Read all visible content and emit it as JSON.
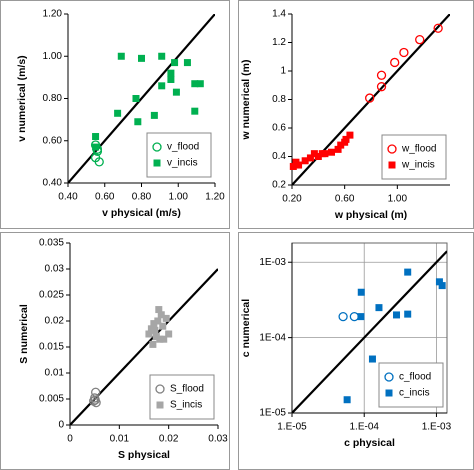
{
  "chart_data": [
    {
      "type": "scatter",
      "xlabel": "v physical (m/s)",
      "ylabel": "v numerical (m/s)",
      "xlim": [
        0.4,
        1.2
      ],
      "ylim": [
        0.4,
        1.2
      ],
      "xticks": [
        {
          "value": 0.4,
          "label": "0.40"
        },
        {
          "value": 0.6,
          "label": "0.60"
        },
        {
          "value": 0.8,
          "label": "0.80"
        },
        {
          "value": 1.0,
          "label": "1.00"
        },
        {
          "value": 1.2,
          "label": "1.20"
        }
      ],
      "yticks": [
        {
          "value": 0.4,
          "label": "0.40"
        },
        {
          "value": 0.6,
          "label": "0.60"
        },
        {
          "value": 0.8,
          "label": "0.80"
        },
        {
          "value": 1.0,
          "label": "1.00"
        },
        {
          "value": 1.2,
          "label": "1.20"
        }
      ],
      "log": false,
      "grid": false,
      "diagonal": true,
      "legend": "lower right",
      "series": [
        {
          "name": "v_flood",
          "color": "#00b050",
          "marker": "open-circle",
          "x": [
            0.55,
            0.56,
            0.55,
            0.57,
            0.56
          ],
          "values": [
            0.58,
            0.55,
            0.52,
            0.5,
            0.56
          ]
        },
        {
          "name": "v_incis",
          "color": "#00b050",
          "marker": "square",
          "x": [
            0.69,
            0.8,
            0.91,
            0.98,
            1.05,
            0.96,
            0.96,
            1.12,
            1.09,
            0.91,
            0.99,
            0.77,
            0.67,
            0.87,
            0.78,
            1.09,
            0.55,
            0.55
          ],
          "values": [
            1.0,
            0.99,
            1.0,
            0.97,
            0.97,
            0.92,
            0.89,
            0.87,
            0.87,
            0.86,
            0.83,
            0.8,
            0.73,
            0.72,
            0.69,
            0.74,
            0.62,
            0.57
          ]
        }
      ]
    },
    {
      "type": "scatter",
      "xlabel": "w physical (m)",
      "ylabel": "w numerical (m)",
      "xlim": [
        0.2,
        1.4
      ],
      "ylim": [
        0.2,
        1.4
      ],
      "xticks": [
        {
          "value": 0.2,
          "label": "0.20"
        },
        {
          "value": 0.6,
          "label": "0.60"
        },
        {
          "value": 1.0,
          "label": "1.00"
        }
      ],
      "yticks": [
        0.2,
        0.4,
        0.6,
        0.8,
        1,
        1.2,
        1.4
      ],
      "log": false,
      "grid": false,
      "diagonal": true,
      "legend": "lower right",
      "series": [
        {
          "name": "w_flood",
          "color": "#ff0000",
          "marker": "open-circle",
          "x": [
            1.31,
            1.17,
            1.05,
            0.98,
            0.88,
            0.88,
            0.79
          ],
          "values": [
            1.3,
            1.22,
            1.13,
            1.06,
            0.97,
            0.89,
            0.81
          ]
        },
        {
          "name": "w_incis",
          "color": "#ff0000",
          "marker": "square",
          "x": [
            0.21,
            0.25,
            0.3,
            0.34,
            0.4,
            0.45,
            0.5,
            0.55,
            0.6,
            0.64,
            0.61,
            0.57,
            0.37,
            0.43,
            0.23
          ],
          "values": [
            0.33,
            0.34,
            0.37,
            0.39,
            0.4,
            0.42,
            0.43,
            0.45,
            0.5,
            0.55,
            0.52,
            0.48,
            0.42,
            0.42,
            0.36
          ]
        }
      ]
    },
    {
      "type": "scatter",
      "xlabel": "S physical",
      "ylabel": "S numerical",
      "xlim": [
        0,
        0.03
      ],
      "ylim": [
        0,
        0.035
      ],
      "xticks": [
        0,
        0.01,
        0.02,
        0.03
      ],
      "yticks": [
        0,
        0.005,
        0.01,
        0.015,
        0.02,
        0.025,
        0.03,
        0.035
      ],
      "log": false,
      "grid": false,
      "diagonal": true,
      "legend": "lower right",
      "series": [
        {
          "name": "S_flood",
          "color": "#808080",
          "marker": "open-circle",
          "x": [
            0.0052,
            0.005,
            0.0048,
            0.0053,
            0.0051
          ],
          "values": [
            0.0063,
            0.0052,
            0.0046,
            0.0043,
            0.0048
          ]
        },
        {
          "name": "S_incis",
          "color": "#a6a6a6",
          "marker": "square",
          "x": [
            0.0165,
            0.018,
            0.0195,
            0.017,
            0.0185,
            0.02,
            0.016,
            0.0175,
            0.019,
            0.0168,
            0.0182,
            0.0172,
            0.0188,
            0.0178
          ],
          "values": [
            0.0185,
            0.0222,
            0.0205,
            0.0195,
            0.0212,
            0.0175,
            0.0175,
            0.017,
            0.0165,
            0.0155,
            0.0165,
            0.0182,
            0.019,
            0.02
          ]
        }
      ]
    },
    {
      "type": "scatter",
      "xlabel": "c physical",
      "ylabel": "c numerical",
      "xlim": [
        1e-05,
        0.0014
      ],
      "ylim": [
        1e-05,
        0.0018
      ],
      "xticks": [
        {
          "value": 1e-05,
          "label": "1.E-05"
        },
        {
          "value": 0.0001,
          "label": "1.E-04"
        },
        {
          "value": 0.001,
          "label": "1.E-03"
        }
      ],
      "yticks": [
        {
          "value": 1e-05,
          "label": "1E-05"
        },
        {
          "value": 0.0001,
          "label": "1E-04"
        },
        {
          "value": 0.001,
          "label": "1E-03"
        }
      ],
      "log": true,
      "grid": true,
      "diagonal": true,
      "legend": "lower right",
      "series": [
        {
          "name": "c_flood",
          "color": "#0070c0",
          "marker": "open-circle",
          "x": [
            5.1e-05,
            7.3e-05
          ],
          "values": [
            0.00019,
            0.00019
          ]
        },
        {
          "name": "c_incis",
          "color": "#0070c0",
          "marker": "square",
          "x": [
            0.0004,
            0.0011,
            0.0012,
            9.1e-05,
            0.00016,
            0.00028,
            0.0004,
            9e-05,
            0.00013,
            5.8e-05
          ],
          "values": [
            0.00074,
            0.00055,
            0.00049,
            0.0004,
            0.00025,
            0.0002,
            0.000205,
            0.00019,
            5.2e-05,
            1.5e-05
          ]
        }
      ]
    }
  ]
}
